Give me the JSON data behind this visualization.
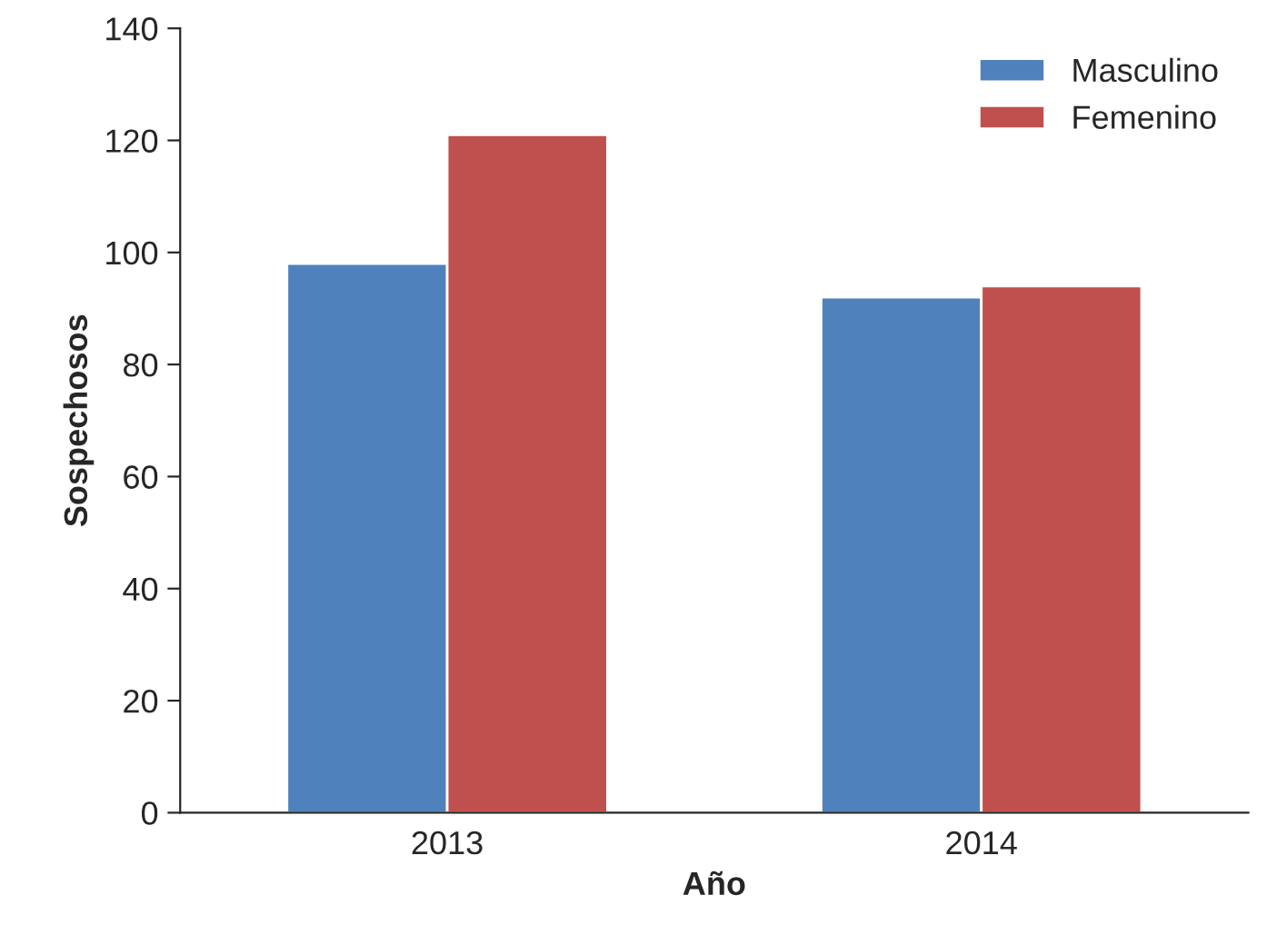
{
  "chart_data": {
    "type": "bar",
    "xlabel": "Año",
    "ylabel": "Sospechosos",
    "categories": [
      "2013",
      "2014"
    ],
    "series": [
      {
        "name": "Masculino",
        "color": "#4f81bd",
        "values": [
          98,
          92
        ]
      },
      {
        "name": "Femenino",
        "color": "#c0504d",
        "values": [
          121,
          94
        ]
      }
    ],
    "ylim": [
      0,
      140
    ],
    "yticks": [
      0,
      20,
      40,
      60,
      80,
      100,
      120,
      140
    ],
    "grid": false,
    "legend": "top right"
  }
}
